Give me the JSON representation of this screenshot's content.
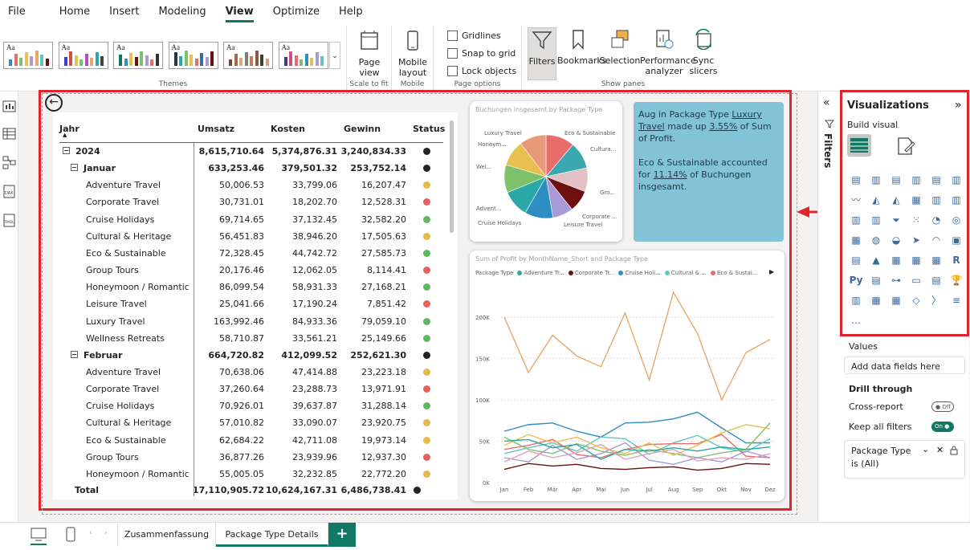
{
  "menu": [
    "File",
    "Home",
    "Insert",
    "Modeling",
    "View",
    "Optimize",
    "Help"
  ],
  "menu_active": "View",
  "ribbon": {
    "themes_label": "Themes",
    "theme_glyph": "Aa",
    "page_view": "Page view",
    "scale_to_fit": "Scale to fit",
    "mobile_layout": "Mobile layout",
    "mobile": "Mobile",
    "gridlines": "Gridlines",
    "snap_to_grid": "Snap to grid",
    "lock_objects": "Lock objects",
    "page_options": "Page options",
    "filters": "Filters",
    "bookmarks": "Bookmarks",
    "selection": "Selection",
    "performance": "Performance analyzer",
    "sync_slicers": "Sync slicers",
    "show_panes": "Show panes"
  },
  "matrix": {
    "headers": [
      "Jahr",
      "Umsatz",
      "Kosten",
      "Gewinn",
      "Status"
    ],
    "rows": [
      {
        "label": "2024",
        "level": 0,
        "bold": true,
        "exp": "⊟",
        "umsatz": "8,615,710.64",
        "kosten": "5,374,876.31",
        "gewinn": "3,240,834.33",
        "status": "#252423"
      },
      {
        "label": "Januar",
        "level": 1,
        "bold": true,
        "exp": "⊟",
        "umsatz": "633,253.46",
        "kosten": "379,501.32",
        "gewinn": "253,752.14",
        "status": "#252423"
      },
      {
        "label": "Adventure Travel",
        "level": 2,
        "umsatz": "50,006.53",
        "kosten": "33,799.06",
        "gewinn": "16,207.47",
        "status": "#e8b84a"
      },
      {
        "label": "Corporate Travel",
        "level": 2,
        "umsatz": "30,731.01",
        "kosten": "18,202.70",
        "gewinn": "12,528.31",
        "status": "#e8605a"
      },
      {
        "label": "Cruise Holidays",
        "level": 2,
        "umsatz": "69,714.65",
        "kosten": "37,132.45",
        "gewinn": "32,582.20",
        "status": "#5fb85f"
      },
      {
        "label": "Cultural & Heritage",
        "level": 2,
        "umsatz": "56,451.83",
        "kosten": "38,946.20",
        "gewinn": "17,505.63",
        "status": "#e8b84a"
      },
      {
        "label": "Eco & Sustainable",
        "level": 2,
        "umsatz": "72,328.45",
        "kosten": "44,742.72",
        "gewinn": "27,585.73",
        "status": "#5fb85f"
      },
      {
        "label": "Group Tours",
        "level": 2,
        "umsatz": "20,176.46",
        "kosten": "12,062.05",
        "gewinn": "8,114.41",
        "status": "#e8605a"
      },
      {
        "label": "Honeymoon / Romantic",
        "level": 2,
        "umsatz": "86,099.54",
        "kosten": "58,931.33",
        "gewinn": "27,168.21",
        "status": "#5fb85f"
      },
      {
        "label": "Leisure Travel",
        "level": 2,
        "umsatz": "25,041.66",
        "kosten": "17,190.24",
        "gewinn": "7,851.42",
        "status": "#e8605a"
      },
      {
        "label": "Luxury Travel",
        "level": 2,
        "umsatz": "163,992.46",
        "kosten": "84,933.36",
        "gewinn": "79,059.10",
        "status": "#5fb85f"
      },
      {
        "label": "Wellness Retreats",
        "level": 2,
        "umsatz": "58,710.87",
        "kosten": "33,561.21",
        "gewinn": "25,149.66",
        "status": "#5fb85f"
      },
      {
        "label": "Februar",
        "level": 1,
        "bold": true,
        "exp": "⊟",
        "umsatz": "664,720.82",
        "kosten": "412,099.52",
        "gewinn": "252,621.30",
        "status": "#252423"
      },
      {
        "label": "Adventure Travel",
        "level": 2,
        "umsatz": "70,638.06",
        "kosten": "47,414.88",
        "gewinn": "23,223.18",
        "status": "#e8b84a"
      },
      {
        "label": "Corporate Travel",
        "level": 2,
        "umsatz": "37,260.64",
        "kosten": "23,288.73",
        "gewinn": "13,971.91",
        "status": "#e8605a"
      },
      {
        "label": "Cruise Holidays",
        "level": 2,
        "umsatz": "70,926.01",
        "kosten": "39,637.87",
        "gewinn": "31,288.14",
        "status": "#5fb85f"
      },
      {
        "label": "Cultural & Heritage",
        "level": 2,
        "umsatz": "57,010.82",
        "kosten": "33,090.07",
        "gewinn": "23,920.75",
        "status": "#e8b84a"
      },
      {
        "label": "Eco & Sustainable",
        "level": 2,
        "umsatz": "62,684.22",
        "kosten": "42,711.08",
        "gewinn": "19,973.14",
        "status": "#e8b84a"
      },
      {
        "label": "Group Tours",
        "level": 2,
        "umsatz": "36,877.26",
        "kosten": "23,939.96",
        "gewinn": "12,937.30",
        "status": "#e8605a"
      },
      {
        "label": "Honeymoon / Romantic",
        "level": 2,
        "umsatz": "55,005.05",
        "kosten": "32,232.85",
        "gewinn": "22,772.20",
        "status": "#e8b84a"
      }
    ],
    "total": {
      "label": "Total",
      "umsatz": "17,110,905.72",
      "kosten": "10,624,167.31",
      "gewinn": "6,486,738.41",
      "status": "#252423"
    }
  },
  "narrative": {
    "p1_a": "Aug in Package Type ",
    "p1_b": "Luxury Travel",
    "p1_c": " made up ",
    "p1_d": "3.55%",
    "p1_e": " of Sum of Profit.",
    "p2_a": "Eco & Sustainable accounted for ",
    "p2_b": "11.14%",
    "p2_c": " of Buchungen insgesamt."
  },
  "chart_data": [
    {
      "type": "pie",
      "title": "Buchungen insgesamt by Package Type",
      "labels": [
        "Eco & Sustainable",
        "Cultura...",
        "Gro...",
        "Corporate ...",
        "Leisure Travel",
        "Cruise Holidays",
        "Advent...",
        "Wel...",
        "Honeym...",
        "Luxury Travel"
      ],
      "values": [
        11.14,
        10.5,
        9.2,
        8.5,
        8.0,
        11.0,
        10.5,
        10.8,
        10.0,
        10.4
      ],
      "colors": [
        "#e86c6a",
        "#3aa8b0",
        "#e3c0c4",
        "#6b0f0f",
        "#a89ad6",
        "#2e8ec4",
        "#2aa8a8",
        "#7dc26b",
        "#e8c050",
        "#e89a78"
      ]
    },
    {
      "type": "line",
      "title": "Sum of Profit by MonthName_Short and Package Type",
      "legend_title": "Package Type",
      "legend": [
        "Adventure Tr...",
        "Corporate Tr...",
        "Cruise Holi...",
        "Cultural & ...",
        "Eco & Sustai..."
      ],
      "legend_colors": [
        "#2aa8a8",
        "#6b0f0f",
        "#2e8ec4",
        "#5fc6c0",
        "#e86c6a"
      ],
      "x": [
        "Jan",
        "Feb",
        "Mär",
        "Apr",
        "Mai",
        "Jun",
        "Jul",
        "Aug",
        "Sep",
        "Okt",
        "Nov",
        "Dez"
      ],
      "y_ticks": [
        "0K",
        "50K",
        "100K",
        "150K",
        "200K"
      ],
      "ylim": [
        0,
        230000
      ],
      "series": [
        {
          "values": [
            200000,
            133000,
            178000,
            153000,
            140000,
            205000,
            124000,
            230000,
            180000,
            100000,
            157000,
            173000
          ],
          "color": "#e8a86a"
        },
        {
          "values": [
            16000,
            23000,
            20000,
            22000,
            17000,
            16000,
            18000,
            19000,
            15000,
            17000,
            23000,
            22000
          ],
          "color": "#6b0f0f"
        },
        {
          "values": [
            62000,
            70000,
            72000,
            62000,
            55000,
            72000,
            73000,
            77000,
            85000,
            66000,
            48000,
            48000
          ],
          "color": "#2e8ec4"
        },
        {
          "values": [
            35000,
            42000,
            48000,
            38000,
            55000,
            53000,
            34000,
            48000,
            57000,
            42000,
            37000,
            53000
          ],
          "color": "#5fc6c0"
        },
        {
          "values": [
            40000,
            45000,
            52000,
            34000,
            30000,
            40000,
            46000,
            47000,
            47000,
            58000,
            32000,
            30000
          ],
          "color": "#e86c6a"
        },
        {
          "values": [
            55000,
            40000,
            35000,
            47000,
            38000,
            33000,
            40000,
            35000,
            30000,
            36000,
            40000,
            72000
          ],
          "color": "#7dc26b"
        },
        {
          "values": [
            45000,
            58000,
            48000,
            55000,
            42000,
            35000,
            48000,
            33000,
            45000,
            60000,
            70000,
            65000
          ],
          "color": "#e8c050"
        },
        {
          "values": [
            30000,
            25000,
            45000,
            28000,
            35000,
            48000,
            27000,
            22000,
            30000,
            25000,
            38000,
            30000
          ],
          "color": "#a89ad6"
        },
        {
          "values": [
            50000,
            52000,
            42000,
            46000,
            28000,
            40000,
            38000,
            42000,
            38000,
            43000,
            40000,
            43000
          ],
          "color": "#2aa8a8"
        },
        {
          "values": [
            25000,
            38000,
            30000,
            36000,
            46000,
            28000,
            35000,
            40000,
            26000,
            30000,
            28000,
            35000
          ],
          "color": "#e3a0b8"
        }
      ]
    }
  ],
  "filters_pane": {
    "label": "Filters"
  },
  "viz": {
    "title": "Visualizations",
    "build_visual": "Build visual",
    "values_label": "Values",
    "values_placeholder": "Add data fields here",
    "drill_through": "Drill through",
    "cross_report": "Cross-report",
    "cross_report_state": "Off",
    "keep_filters": "Keep all filters",
    "keep_filters_state": "On",
    "filter_card_line1": "Package Type",
    "filter_card_line2": "is (All)"
  },
  "tabs": [
    "Zusammenfassung",
    "Package Type Details"
  ],
  "active_tab": "Package Type Details",
  "add_tab": "+"
}
